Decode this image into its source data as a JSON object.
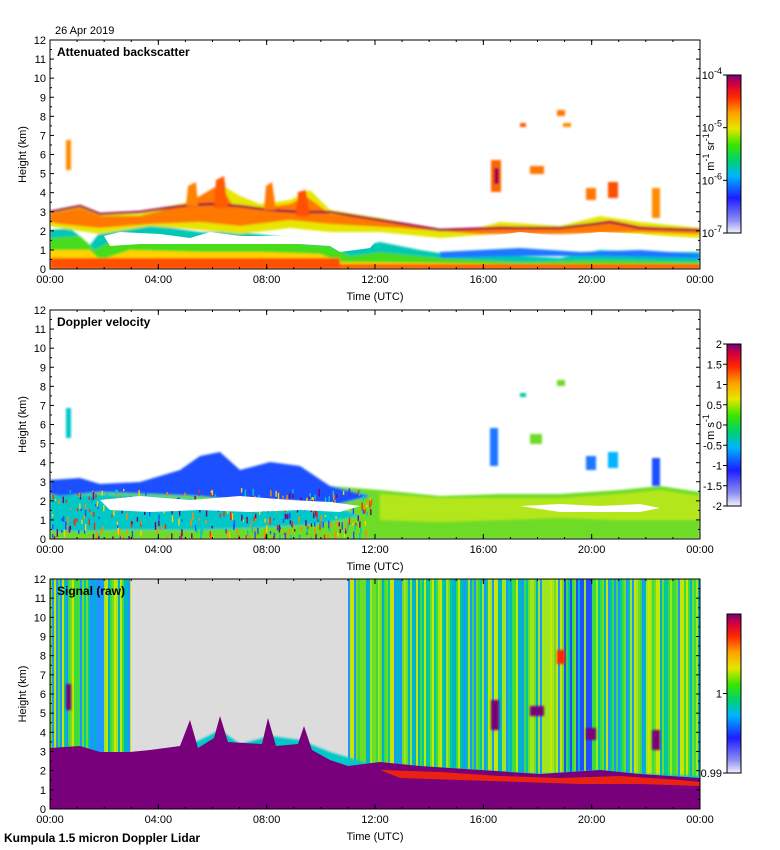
{
  "date_label": "26 Apr 2019",
  "footer_label": "Kumpula 1.5 micron Doppler Lidar",
  "colors": {
    "white_bg": "#ffffff",
    "nodata_gray": "#dcdcdc",
    "axis": "#000000"
  },
  "chart_data": [
    {
      "type": "heatmap",
      "title": "Attenuated backscatter",
      "xlabel": "Time (UTC)",
      "ylabel": "Height (km)",
      "x_ticks": [
        "00:00",
        "04:00",
        "08:00",
        "12:00",
        "16:00",
        "20:00",
        "00:00"
      ],
      "y_ticks": [
        "0",
        "1",
        "2",
        "3",
        "4",
        "5",
        "6",
        "7",
        "8",
        "9",
        "10",
        "11",
        "12"
      ],
      "ylim": [
        0,
        12
      ],
      "xlim_hours": [
        0,
        24
      ],
      "colorbar": {
        "scale": "log",
        "range": [
          1e-07,
          0.0001
        ],
        "ticks": [
          {
            "base": "10",
            "exp": "-4",
            "value": -4
          },
          {
            "base": "10",
            "exp": "-5",
            "value": -5
          },
          {
            "base": "10",
            "exp": "-6",
            "value": -6
          },
          {
            "base": "10",
            "exp": "-7",
            "value": -7
          }
        ],
        "unit_parts": [
          "m",
          "-1",
          " sr",
          "-1"
        ]
      },
      "cloud_base_km": [
        [
          0,
          3.0
        ],
        [
          1,
          3.2
        ],
        [
          2,
          2.7
        ],
        [
          3,
          2.9
        ],
        [
          4,
          3.0
        ],
        [
          5,
          3.1
        ],
        [
          6,
          3.3
        ],
        [
          7,
          3.1
        ],
        [
          8,
          2.9
        ],
        [
          9,
          3.2
        ],
        [
          10,
          2.6
        ],
        [
          11,
          2.4
        ],
        [
          12,
          2.6
        ],
        [
          13,
          2.4
        ],
        [
          14,
          2.3
        ],
        [
          15,
          2.1
        ],
        [
          16,
          2.0
        ],
        [
          17,
          2.3
        ],
        [
          18,
          2.2
        ],
        [
          19,
          2.1
        ],
        [
          20,
          2.3
        ],
        [
          21,
          2.2
        ],
        [
          22,
          1.9
        ],
        [
          23,
          1.9
        ],
        [
          24,
          1.9
        ]
      ]
    },
    {
      "type": "heatmap",
      "title": "Doppler velocity",
      "xlabel": "Time (UTC)",
      "ylabel": "Height (km)",
      "x_ticks": [
        "00:00",
        "04:00",
        "08:00",
        "12:00",
        "16:00",
        "20:00",
        "00:00"
      ],
      "y_ticks": [
        "0",
        "1",
        "2",
        "3",
        "4",
        "5",
        "6",
        "7",
        "8",
        "9",
        "10",
        "11",
        "12"
      ],
      "ylim": [
        0,
        12
      ],
      "xlim_hours": [
        0,
        24
      ],
      "colorbar": {
        "scale": "linear",
        "range": [
          -2,
          2
        ],
        "ticks": [
          "2",
          "1.5",
          "1",
          "0.5",
          "0",
          "-0.5",
          "-1",
          "-1.5",
          "-2"
        ],
        "unit_parts": [
          "m s",
          "-1"
        ]
      }
    },
    {
      "type": "heatmap",
      "title": "Signal (raw)",
      "xlabel": "Time (UTC)",
      "ylabel": "Height (km)",
      "x_ticks": [
        "00:00",
        "04:00",
        "08:00",
        "12:00",
        "16:00",
        "20:00",
        "00:00"
      ],
      "y_ticks": [
        "0",
        "1",
        "2",
        "3",
        "4",
        "5",
        "6",
        "7",
        "8",
        "9",
        "10",
        "11",
        "12"
      ],
      "ylim": [
        0,
        12
      ],
      "xlim_hours": [
        0,
        24
      ],
      "no_data_hours": [
        3.0,
        11.0
      ],
      "colorbar": {
        "scale": "linear",
        "range": [
          0.99,
          1.01
        ],
        "ticks": [
          "1",
          "0.99"
        ]
      }
    }
  ]
}
